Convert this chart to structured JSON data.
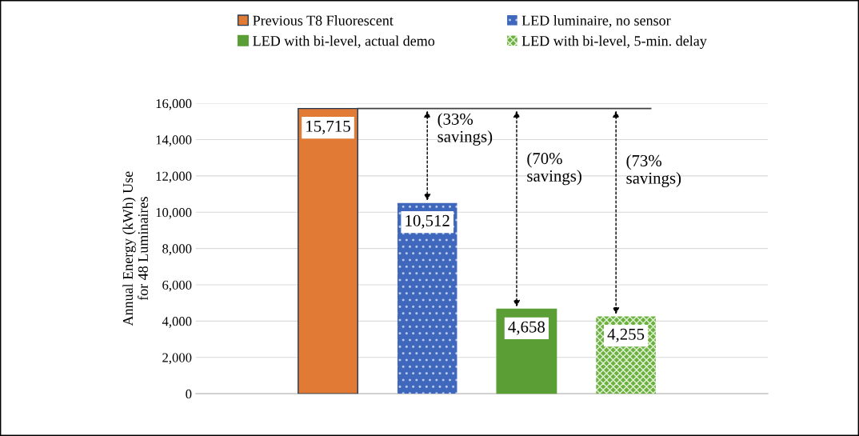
{
  "chart_data": {
    "type": "bar",
    "categories": [
      null,
      null,
      null,
      null
    ],
    "series": [
      {
        "name": "Previous T8 Fluorescent",
        "color": "#e07a34",
        "values": [
          15715,
          null,
          null,
          null
        ]
      },
      {
        "name": "LED luminaire, no sensor",
        "color": "#3f68bd",
        "values": [
          null,
          10512,
          null,
          null
        ]
      },
      {
        "name": "LED with bi-level, actual demo",
        "color": "#5a9e35",
        "values": [
          null,
          null,
          4658,
          null
        ]
      },
      {
        "name": "LED with bi-level, 5-min. delay",
        "color": "#6cb040",
        "values": [
          null,
          null,
          null,
          4255
        ]
      }
    ],
    "ylabel": "Annual Energy (kWh) Use\nfor 48 Luminaires",
    "ylim": [
      0,
      16000
    ],
    "yticks": [
      {
        "value": 0,
        "label": "0"
      },
      {
        "value": 2000,
        "label": "2,000"
      },
      {
        "value": 4000,
        "label": "4,000"
      },
      {
        "value": 6000,
        "label": "6,000"
      },
      {
        "value": 8000,
        "label": "8,000"
      },
      {
        "value": 10000,
        "label": "10,000"
      },
      {
        "value": 12000,
        "label": "12,000"
      },
      {
        "value": 14000,
        "label": "14,000"
      },
      {
        "value": 16000,
        "label": "16,000"
      }
    ],
    "value_labels": [
      "15,715",
      "10,512",
      "4,658",
      "4,255"
    ],
    "ref_lines": [
      {
        "axis": "y",
        "value": 15715,
        "color": "#404040"
      }
    ],
    "annotations": [
      "(33%\nsavings)",
      "(70%\nsavings)",
      "(73%\nsavings)"
    ],
    "grid": "y",
    "legend": "top"
  }
}
